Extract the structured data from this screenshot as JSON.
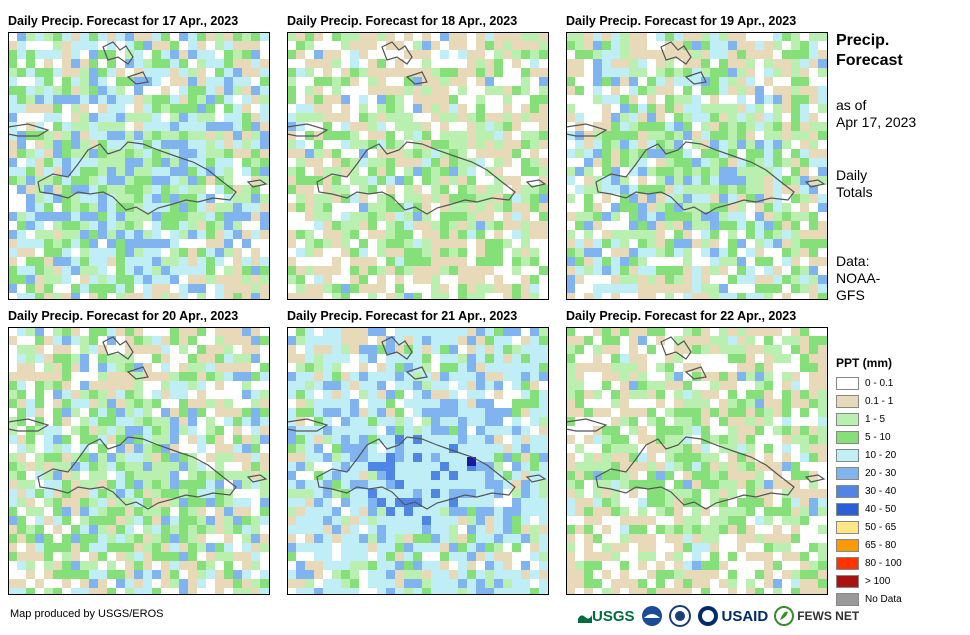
{
  "panels": [
    {
      "title": "Daily Precip. Forecast for 17 Apr., 2023"
    },
    {
      "title": "Daily Precip. Forecast for 18 Apr., 2023"
    },
    {
      "title": "Daily Precip. Forecast for 19 Apr., 2023"
    },
    {
      "title": "Daily Precip. Forecast for 20 Apr., 2023"
    },
    {
      "title": "Daily Precip. Forecast for 21 Apr., 2023"
    },
    {
      "title": "Daily Precip. Forecast for 22 Apr., 2023"
    }
  ],
  "side": {
    "title_line1": "Precip.",
    "title_line2": "Forecast",
    "asof_line1": "as of",
    "asof_line2": "Apr 17, 2023",
    "totals_line1": "Daily",
    "totals_line2": "Totals",
    "data_line1": "Data:",
    "data_line2": "NOAA-",
    "data_line3": "GFS"
  },
  "legend": {
    "title": "PPT (mm)",
    "items": [
      {
        "label": "0 - 0.1",
        "color": "#ffffff"
      },
      {
        "label": "0.1 - 1",
        "color": "#e8d9b8"
      },
      {
        "label": "1 - 5",
        "color": "#b9f0b0"
      },
      {
        "label": "5 - 10",
        "color": "#85e07a"
      },
      {
        "label": "10 - 20",
        "color": "#bfeef7"
      },
      {
        "label": "20 - 30",
        "color": "#7fb4f0"
      },
      {
        "label": "30 - 40",
        "color": "#4f86e6"
      },
      {
        "label": "40 - 50",
        "color": "#2a5fd6"
      },
      {
        "label": "50 - 65",
        "color": "#ffe680"
      },
      {
        "label": "65 - 80",
        "color": "#ff9900"
      },
      {
        "label": "80 - 100",
        "color": "#ff3300"
      },
      {
        "label": "> 100",
        "color": "#aa1111"
      },
      {
        "label": "No Data",
        "color": "#999999"
      }
    ]
  },
  "credit": "Map produced by USGS/EROS",
  "logos": {
    "usgs": "USGS",
    "usaid": "USAID",
    "fewsnet": "FEWS NET"
  }
}
